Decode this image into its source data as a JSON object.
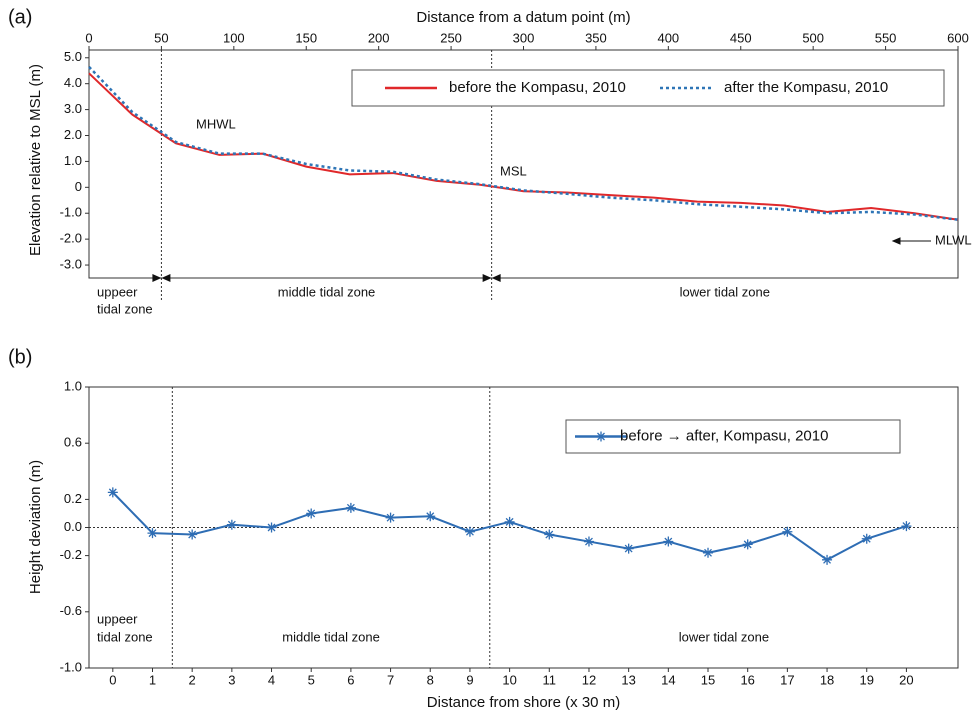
{
  "chart_data": [
    {
      "type": "line",
      "panel_label": "(a)",
      "xlabel": "Distance from a datum point (m)",
      "ylabel": "Elevation relative to MSL (m)",
      "x": [
        0,
        30,
        60,
        90,
        120,
        150,
        180,
        210,
        240,
        270,
        300,
        330,
        360,
        390,
        420,
        450,
        480,
        510,
        540,
        570,
        600
      ],
      "series": [
        {
          "name": "before the Kompasu, 2010",
          "color": "#e0282a",
          "dash": "none",
          "values": [
            4.4,
            2.8,
            1.7,
            1.25,
            1.3,
            0.8,
            0.5,
            0.55,
            0.25,
            0.1,
            -0.15,
            -0.2,
            -0.3,
            -0.4,
            -0.55,
            -0.6,
            -0.7,
            -0.95,
            -0.8,
            -1.0,
            -1.25
          ]
        },
        {
          "name": "after the Kompasu, 2010",
          "color": "#2e75b6",
          "dash": "3,3",
          "values": [
            4.65,
            2.9,
            1.75,
            1.3,
            1.3,
            0.9,
            0.65,
            0.6,
            0.3,
            0.12,
            -0.12,
            -0.25,
            -0.4,
            -0.5,
            -0.65,
            -0.75,
            -0.85,
            -1.0,
            -0.95,
            -1.05,
            -1.25
          ]
        }
      ],
      "xlim": [
        0,
        600
      ],
      "xticks": [
        0,
        50,
        100,
        150,
        200,
        250,
        300,
        350,
        400,
        450,
        500,
        550,
        600
      ],
      "ylim": [
        -3.5,
        5.3
      ],
      "yticks": [
        {
          "value": 5,
          "label": "5.0"
        },
        {
          "value": 4,
          "label": "4.0"
        },
        {
          "value": 3,
          "label": "3.0"
        },
        {
          "value": 2,
          "label": "2.0"
        },
        {
          "value": 1,
          "label": "1.0"
        },
        0,
        {
          "value": -1,
          "label": "-1.0"
        },
        {
          "value": -2,
          "label": "-2.0"
        },
        {
          "value": -3,
          "label": "-3.0"
        }
      ],
      "zone_boundaries": [
        50,
        278
      ],
      "zones": [
        [
          "uppeer",
          "tidal zone"
        ],
        [
          "middle tidal zone"
        ],
        [
          "lower tidal zone"
        ]
      ],
      "annotations": [
        "MHWL",
        "MSL",
        "MLWL"
      ]
    },
    {
      "type": "line",
      "panel_label": "(b)",
      "xlabel": "Distance from shore (x 30 m)",
      "ylabel": "Height deviation (m)",
      "x": [
        0,
        1,
        2,
        3,
        4,
        5,
        6,
        7,
        8,
        9,
        10,
        11,
        12,
        13,
        14,
        15,
        16,
        17,
        18,
        19,
        20
      ],
      "series": [
        {
          "name": "before → after, Kompasu, 2010",
          "color": "#2e6db4",
          "marker": "asterisk",
          "values": [
            0.25,
            -0.04,
            -0.05,
            0.02,
            0.0,
            0.1,
            0.14,
            0.07,
            0.08,
            -0.03,
            0.04,
            -0.05,
            -0.1,
            -0.15,
            -0.1,
            -0.18,
            -0.12,
            -0.03,
            -0.23,
            -0.08,
            0.01
          ]
        }
      ],
      "xlim": [
        -0.6,
        21.3
      ],
      "xticks": [
        0,
        1,
        2,
        3,
        4,
        5,
        6,
        7,
        8,
        9,
        10,
        11,
        12,
        13,
        14,
        15,
        16,
        17,
        18,
        19,
        20
      ],
      "ylim": [
        -1,
        1
      ],
      "yticks": [
        {
          "value": 1,
          "label": "1.0"
        },
        0.6,
        0.2,
        {
          "value": 0,
          "label": "0.0"
        },
        -0.2,
        -0.6,
        {
          "value": -1,
          "label": "-1.0"
        }
      ],
      "zone_boundaries": [
        1.5,
        9.5
      ],
      "zones": [
        [
          "uppeer",
          "tidal zone"
        ],
        [
          "middle tidal zone"
        ],
        [
          "lower tidal zone"
        ]
      ]
    }
  ]
}
